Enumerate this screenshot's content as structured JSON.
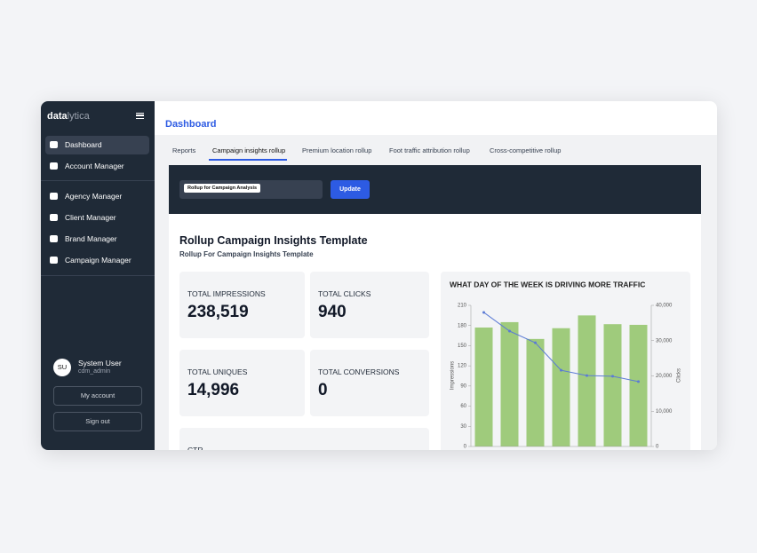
{
  "sidebar": {
    "logo": [
      "data",
      "lytica"
    ],
    "nav": [
      "Dashboard",
      "Account Manager",
      "Agency Manager",
      "Client Manager",
      "Brand Manager",
      "Campaign Manager"
    ],
    "user": {
      "initials": "SU",
      "name": "System User",
      "username": "cdm_admin"
    },
    "buttons": [
      "My account",
      "Sign out"
    ]
  },
  "header": {
    "title": "Dashboard"
  },
  "tabs": [
    "Reports",
    "Campaign insights rollup",
    "Premium location rollup",
    "Foot traffic attribution rollup",
    "Cross-competitive rollup"
  ],
  "toolbar": {
    "select": "Rollup for Campaign Analysis",
    "button": "Update"
  },
  "report": {
    "title": "Rollup Campaign Insights Template",
    "subtitle": "Rollup For Campaign Insights Template"
  },
  "metrics": [
    {
      "label": "TOTAL IMPRESSIONS",
      "value": "238,519"
    },
    {
      "label": "TOTAL CLICKS",
      "value": "940"
    },
    {
      "label": "TOTAL UNIQUES",
      "value": "14,996"
    },
    {
      "label": "TOTAL CONVERSIONS",
      "value": "0"
    },
    {
      "label": "CTR"
    }
  ],
  "chart_data": {
    "type": "bar",
    "title": "WHAT DAY OF THE WEEK IS DRIVING MORE TRAFFIC",
    "categories": [
      null,
      null,
      null,
      null,
      null,
      null,
      null
    ],
    "series": [
      {
        "color": "#9fcb7c",
        "values": [
          177,
          185,
          160,
          176,
          195,
          182,
          181
        ]
      },
      {
        "type": "line",
        "axis": "y2",
        "color": "#5b7bd5",
        "values": [
          38000,
          32700,
          29400,
          21600,
          20100,
          19900,
          18400
        ]
      }
    ],
    "ylabel": "Impressions",
    "y2label": "Clicks",
    "ylim": [
      0,
      210
    ],
    "yticks": [
      0,
      30,
      60,
      90,
      120,
      150,
      180,
      210
    ],
    "y2lim": [
      0,
      40000
    ],
    "y2ticks": [
      0,
      {
        "value": 10000,
        "label": "10,000"
      },
      {
        "value": 20000,
        "label": "20,000"
      },
      {
        "value": 30000,
        "label": "30,000"
      },
      {
        "value": 40000,
        "label": "40,000"
      }
    ]
  }
}
